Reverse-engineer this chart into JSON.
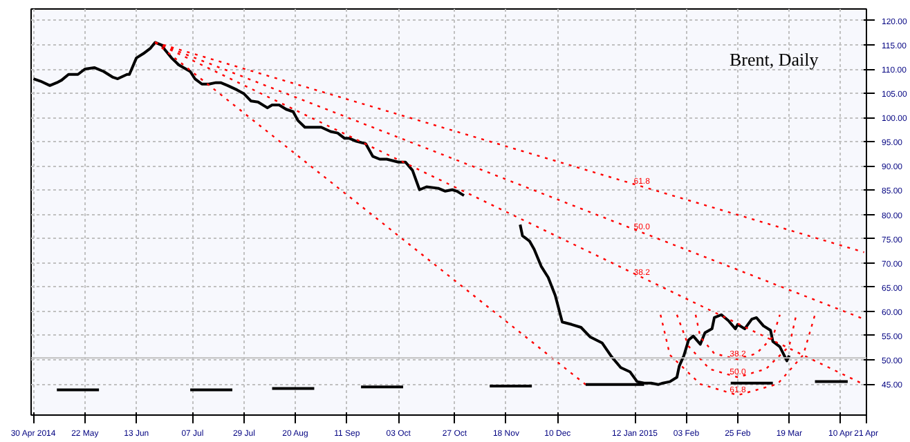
{
  "chart_data": {
    "type": "line",
    "title": "Brent, Daily",
    "xlim": [
      "2014-04-29",
      "2015-04-21"
    ],
    "ylim": [
      38.6,
      122.4
    ],
    "xticks": [
      {
        "value": "2014-04-30",
        "label": "30 Apr 2014"
      },
      {
        "value": "2014-05-22",
        "label": "22 May"
      },
      {
        "value": "2014-06-13",
        "label": "13 Jun"
      },
      {
        "value": "2014-07-07",
        "label": "07 Jul"
      },
      {
        "value": "2014-07-29",
        "label": "29 Jul"
      },
      {
        "value": "2014-08-20",
        "label": "20 Aug"
      },
      {
        "value": "2014-09-11",
        "label": "11 Sep"
      },
      {
        "value": "2014-10-03",
        "label": "03 Oct"
      },
      {
        "value": "2014-10-27",
        "label": "27 Oct"
      },
      {
        "value": "2014-11-18",
        "label": "18 Nov"
      },
      {
        "value": "2014-12-10",
        "label": "10 Dec"
      },
      {
        "value": "2015-01-12",
        "label": "12 Jan 2015"
      },
      {
        "value": "2015-02-03",
        "label": "03 Feb"
      },
      {
        "value": "2015-02-25",
        "label": "25 Feb"
      },
      {
        "value": "2015-03-19",
        "label": "19 Mar"
      },
      {
        "value": "2015-04-10",
        "label": "10 Apr"
      },
      {
        "value": "2015-04-21",
        "label": "21 Apr"
      }
    ],
    "yticks": [
      {
        "value": 45,
        "label": "45.00"
      },
      {
        "value": 50,
        "label": "50.00"
      },
      {
        "value": 55,
        "label": "55.00"
      },
      {
        "value": 60,
        "label": "60.00"
      },
      {
        "value": 65,
        "label": "65.00"
      },
      {
        "value": 70,
        "label": "70.00"
      },
      {
        "value": 75,
        "label": "75.00"
      },
      {
        "value": 80,
        "label": "80.00"
      },
      {
        "value": 85,
        "label": "85.00"
      },
      {
        "value": 90,
        "label": "90.00"
      },
      {
        "value": 95,
        "label": "95.00"
      },
      {
        "value": 100,
        "label": "100.00"
      },
      {
        "value": 105,
        "label": "105.00"
      },
      {
        "value": 110,
        "label": "110.00"
      },
      {
        "value": 115,
        "label": "115.00"
      },
      {
        "value": 120,
        "label": "120.00"
      }
    ],
    "grid": true,
    "series": [
      {
        "color": "#000000",
        "line_style": "solid",
        "x": [
          "2014-04-30",
          "2014-05-03",
          "2014-05-07",
          "2014-05-10",
          "2014-05-12",
          "2014-05-15",
          "2014-05-19",
          "2014-05-22",
          "2014-05-26",
          "2014-05-30",
          "2014-06-03",
          "2014-06-05",
          "2014-06-09",
          "2014-06-10",
          "2014-06-13",
          "2014-06-16",
          "2014-06-19",
          "2014-06-21",
          "2014-06-24",
          "2014-06-25",
          "2014-06-28",
          "2014-07-01",
          "2014-07-06",
          "2014-07-08",
          "2014-07-11",
          "2014-07-14",
          "2014-07-17",
          "2014-07-19",
          "2014-07-22",
          "2014-07-26",
          "2014-07-29",
          "2014-08-01",
          "2014-08-04",
          "2014-08-08",
          "2014-08-10",
          "2014-08-13",
          "2014-08-16",
          "2014-08-19",
          "2014-08-21",
          "2014-08-24",
          "2014-08-28",
          "2014-08-31",
          "2014-09-04",
          "2014-09-07",
          "2014-09-10",
          "2014-09-12",
          "2014-09-15",
          "2014-09-19",
          "2014-09-22",
          "2014-09-25",
          "2014-09-28",
          "2014-10-03",
          "2014-10-06",
          "2014-10-09",
          "2014-10-12",
          "2014-10-15",
          "2014-10-20",
          "2014-10-23",
          "2014-10-26",
          "2014-10-28",
          "2014-10-31",
          "2014-11-13",
          "2014-11-24",
          "2014-11-25",
          "2014-11-28",
          "2014-11-30",
          "2014-12-03",
          "2014-12-06",
          "2014-12-09",
          "2014-12-12",
          "2014-12-16",
          "2014-12-20",
          "2014-12-24",
          "2014-12-29",
          "2015-01-02",
          "2015-01-06",
          "2015-01-10",
          "2015-01-13",
          "2015-01-16",
          "2015-01-19",
          "2015-01-22",
          "2015-01-24",
          "2015-01-27",
          "2015-01-30",
          "2015-01-31",
          "2015-02-02",
          "2015-02-04",
          "2015-02-06",
          "2015-02-09",
          "2015-02-11",
          "2015-02-14",
          "2015-02-15",
          "2015-02-18",
          "2015-02-21",
          "2015-02-24",
          "2015-02-25",
          "2015-02-28",
          "2015-03-03",
          "2015-03-05",
          "2015-03-08",
          "2015-03-11",
          "2015-03-12",
          "2015-03-15",
          "2015-03-18",
          "2015-03-19"
        ],
        "values": [
          108.0,
          107.5,
          106.6,
          107.2,
          107.7,
          108.9,
          108.9,
          110.0,
          110.3,
          109.5,
          108.3,
          108.0,
          108.9,
          108.9,
          112.3,
          113.2,
          114.3,
          115.5,
          114.9,
          114.1,
          112.3,
          110.9,
          109.5,
          108.0,
          106.9,
          106.9,
          107.2,
          107.2,
          106.6,
          105.7,
          104.9,
          103.4,
          103.2,
          102.0,
          102.6,
          102.6,
          101.7,
          101.2,
          99.4,
          98.0,
          98.0,
          98.0,
          97.1,
          96.8,
          95.7,
          95.7,
          95.1,
          94.6,
          92.0,
          91.4,
          91.4,
          90.8,
          90.8,
          89.1,
          85.1,
          85.7,
          85.4,
          84.8,
          85.1,
          84.8,
          83.9,
          null,
          77.9,
          75.6,
          74.5,
          72.8,
          69.3,
          67.0,
          63.3,
          57.8,
          57.3,
          56.7,
          54.7,
          53.5,
          50.7,
          48.4,
          47.5,
          45.5,
          45.2,
          45.2,
          44.9,
          45.2,
          45.5,
          46.4,
          48.7,
          50.9,
          54.1,
          54.9,
          53.2,
          55.6,
          56.4,
          58.7,
          59.3,
          58.1,
          56.4,
          57.3,
          56.4,
          58.4,
          58.7,
          57.0,
          56.1,
          53.8,
          52.7,
          49.8,
          50.9
        ]
      },
      {
        "color": "#ff0000",
        "line_style": "dotted",
        "x": [
          "2014-06-21",
          "2015-04-20"
        ],
        "values": [
          115.5,
          72.2
        ]
      },
      {
        "color": "#ff0000",
        "line_style": "dotted",
        "x": [
          "2014-06-21",
          "2015-04-20"
        ],
        "values": [
          115.5,
          58.4
        ]
      },
      {
        "color": "#ff0000",
        "line_style": "dotted",
        "x": [
          "2014-06-21",
          "2015-04-20"
        ],
        "values": [
          115.5,
          44.9
        ]
      },
      {
        "color": "#ff0000",
        "line_style": "dotted",
        "x": [
          "2014-06-21",
          "2014-12-22"
        ],
        "values": [
          115.5,
          44.9
        ]
      },
      {
        "color": "#ff0000",
        "line_style": "dotted",
        "x": [
          "2015-01-23",
          "2015-01-27",
          "2015-02-09",
          "2015-02-25",
          "2015-03-14",
          "2015-03-25",
          "2015-03-30"
        ],
        "values": [
          59.3,
          51.0,
          45.0,
          42.7,
          45.0,
          51.0,
          59.3
        ]
      },
      {
        "color": "#ff0000",
        "line_style": "dotted",
        "x": [
          "2015-01-30",
          "2015-02-04",
          "2015-02-13",
          "2015-02-25",
          "2015-03-09",
          "2015-03-19",
          "2015-03-22"
        ],
        "values": [
          59.3,
          52.8,
          48.1,
          46.4,
          48.1,
          52.8,
          59.3
        ]
      },
      {
        "color": "#ff0000",
        "line_style": "dotted",
        "x": [
          "2015-02-07",
          "2015-02-09",
          "2015-02-15",
          "2015-02-25",
          "2015-03-05",
          "2015-03-12",
          "2015-03-15"
        ],
        "values": [
          59.3,
          54.7,
          51.3,
          50.1,
          51.3,
          54.7,
          59.3
        ]
      },
      {
        "color": "#000000",
        "line_style": "solid",
        "x": [
          "2014-05-10",
          "2014-05-28"
        ],
        "values": [
          43.8,
          43.8
        ]
      },
      {
        "color": "#000000",
        "line_style": "solid",
        "x": [
          "2014-07-06",
          "2014-07-24"
        ],
        "values": [
          43.8,
          43.8
        ]
      },
      {
        "color": "#000000",
        "line_style": "solid",
        "x": [
          "2014-08-10",
          "2014-08-28"
        ],
        "values": [
          44.1,
          44.1
        ]
      },
      {
        "color": "#000000",
        "line_style": "solid",
        "x": [
          "2014-09-17",
          "2014-10-05"
        ],
        "values": [
          44.4,
          44.4
        ]
      },
      {
        "color": "#000000",
        "line_style": "solid",
        "x": [
          "2014-11-11",
          "2014-11-29"
        ],
        "values": [
          44.6,
          44.6
        ]
      },
      {
        "color": "#000000",
        "line_style": "solid",
        "x": [
          "2014-12-22",
          "2015-01-16"
        ],
        "values": [
          44.9,
          44.9
        ]
      },
      {
        "color": "#000000",
        "line_style": "solid",
        "x": [
          "2015-02-22",
          "2015-03-12"
        ],
        "values": [
          45.2,
          45.2
        ]
      },
      {
        "color": "#000000",
        "line_style": "solid",
        "x": [
          "2015-03-30",
          "2015-04-13"
        ],
        "values": [
          45.5,
          45.5
        ]
      }
    ],
    "ref_lines": [
      {
        "axis": "y",
        "value": 50.4,
        "color": "#c0c0c0",
        "line_style": "solid"
      }
    ],
    "annotations": [
      {
        "text": "61.8",
        "x": "2015-01-15",
        "y": 85.8
      },
      {
        "text": "50.0",
        "x": "2015-01-15",
        "y": 76.3
      },
      {
        "text": "38.2",
        "x": "2015-01-15",
        "y": 67.0
      },
      {
        "text": "38.2",
        "x": "2015-02-25",
        "y": 50.1
      },
      {
        "text": "50.0",
        "x": "2015-02-25",
        "y": 46.4
      },
      {
        "text": "61.8",
        "x": "2015-02-25",
        "y": 42.7
      }
    ]
  }
}
